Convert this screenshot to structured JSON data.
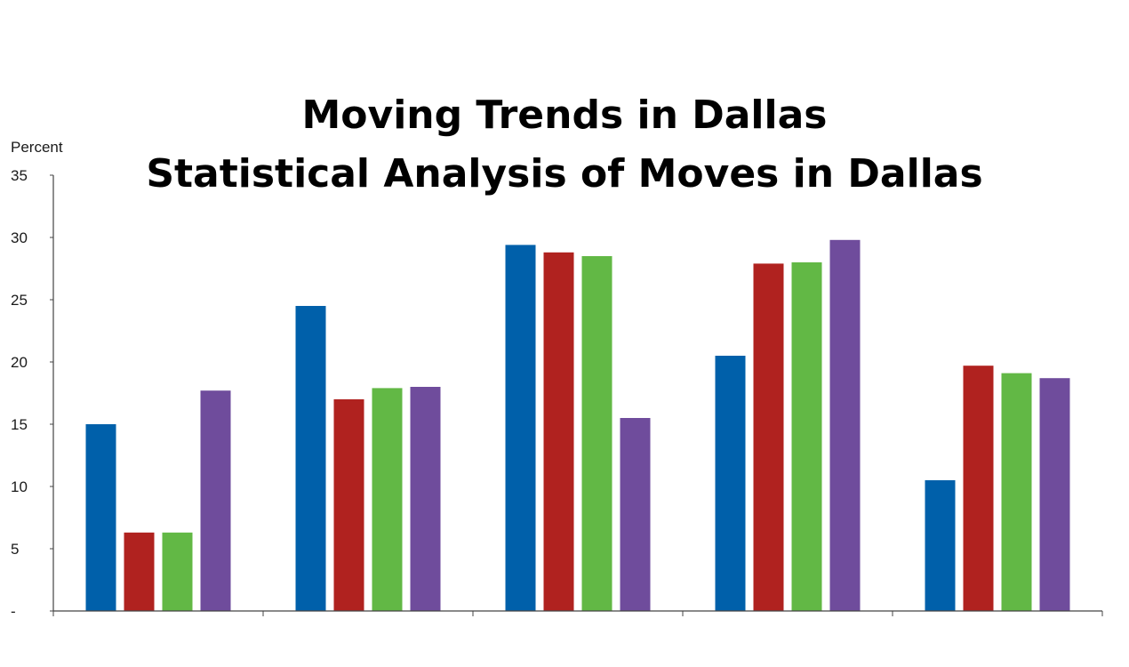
{
  "chart_data": {
    "type": "bar",
    "title": "Moving Trends in Dallas",
    "subtitle": "Statistical Analysis of Moves in Dallas",
    "ylabel": "Percent",
    "xlabel": "",
    "ylim": [
      0,
      35
    ],
    "yticks": [
      35,
      30,
      25,
      20,
      15,
      10,
      5,
      0
    ],
    "ytick_labels": [
      "35",
      "30",
      "25",
      "20",
      "15",
      "10",
      "5",
      "-"
    ],
    "categories": [
      "",
      "",
      "",
      "",
      ""
    ],
    "grid": false,
    "legend": "none",
    "series": [
      {
        "color": "#0060AA",
        "values": [
          15.0,
          24.5,
          29.4,
          20.5,
          10.5
        ]
      },
      {
        "color": "#B0221F",
        "values": [
          6.3,
          17.0,
          28.8,
          27.9,
          19.7
        ]
      },
      {
        "color": "#62B845",
        "values": [
          6.3,
          17.9,
          28.5,
          28.0,
          19.1
        ]
      },
      {
        "color": "#6F4C9C",
        "values": [
          17.7,
          18.0,
          15.5,
          29.8,
          18.7
        ]
      }
    ]
  }
}
